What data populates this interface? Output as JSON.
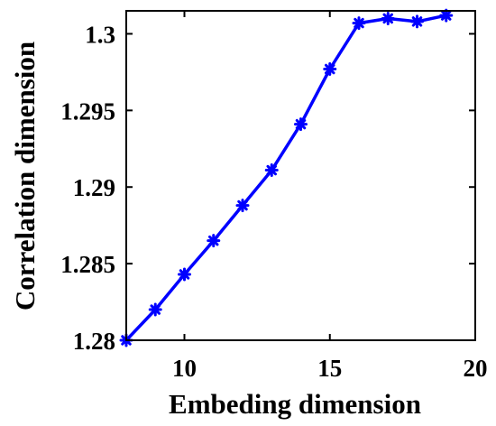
{
  "chart_data": {
    "type": "line",
    "title": "",
    "xlabel": "Embeding dimension",
    "ylabel": "Correlation dimension",
    "xlim": [
      8,
      20
    ],
    "ylim": [
      1.28,
      1.3015
    ],
    "xticks": [
      10,
      15,
      20
    ],
    "xtick_labels": [
      "10",
      "15",
      "20"
    ],
    "yticks": [
      1.28,
      1.285,
      1.29,
      1.295,
      1.3
    ],
    "ytick_labels": [
      "1.28",
      "1.285",
      "1.29",
      "1.295",
      "1.3"
    ],
    "grid": false,
    "legend": "none",
    "series": [
      {
        "x": [
          8,
          9,
          10,
          11,
          12,
          13,
          14,
          15,
          16,
          17,
          18,
          19
        ],
        "y": [
          1.28,
          1.282,
          1.2843,
          1.2865,
          1.2888,
          1.2911,
          1.2941,
          1.2977,
          1.3007,
          1.301,
          1.3008,
          1.3012
        ],
        "color": "#0000ff",
        "marker": "asterisk"
      }
    ]
  }
}
